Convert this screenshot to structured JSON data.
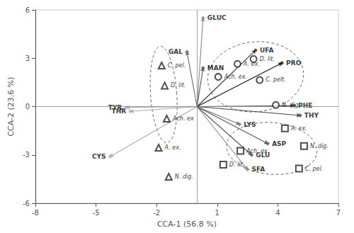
{
  "chart_data": {
    "type": "scatter",
    "xlabel": "CCA-1 (56.8 %)",
    "ylabel": "CCA-2 (23.6 %)",
    "xlim": [
      -8,
      7
    ],
    "ylim": [
      -6,
      6
    ],
    "xticks": [
      -8,
      -5,
      -2,
      1,
      4,
      7
    ],
    "yticks": [
      -6,
      -3,
      0,
      3,
      6
    ],
    "grid": false,
    "arrows": {
      "marker": "diamond",
      "items": [
        {
          "label": "GLUC",
          "x": 0.3,
          "y": 5.5,
          "color": "#888888"
        },
        {
          "label": "GAL",
          "x": -0.5,
          "y": 3.4,
          "color": "#666666"
        },
        {
          "label": "MAN",
          "x": 0.3,
          "y": 2.4,
          "color": "#555555"
        },
        {
          "label": "UFA",
          "x": 2.9,
          "y": 3.5,
          "color": "#333333"
        },
        {
          "label": "PRO",
          "x": 4.2,
          "y": 2.7,
          "color": "#111111"
        },
        {
          "label": "PHE",
          "x": 4.8,
          "y": 0.05,
          "color": "#444444"
        },
        {
          "label": "THY",
          "x": 5.1,
          "y": -0.55,
          "color": "#444444"
        },
        {
          "label": "LYS",
          "x": 2.1,
          "y": -1.1,
          "color": "#777777"
        },
        {
          "label": "ASP",
          "x": 3.5,
          "y": -2.3,
          "color": "#555555"
        },
        {
          "label": "GLU",
          "x": 2.7,
          "y": -3.0,
          "color": "#555555"
        },
        {
          "label": "SFA",
          "x": 2.5,
          "y": -3.9,
          "color": "#888888"
        },
        {
          "label": "TYR",
          "x": -3.5,
          "y": -0.05,
          "color": "#aaaaaa"
        },
        {
          "label": "THR",
          "x": -3.3,
          "y": -0.3,
          "color": "#aaaaaa"
        },
        {
          "label": "CYS",
          "x": -4.3,
          "y": -3.1,
          "color": "#aaaaaa"
        }
      ]
    },
    "species": [
      {
        "marker": "circle",
        "points": [
          {
            "label": "A. ex.",
            "x": 2.0,
            "y": 2.65
          },
          {
            "label": "D. lit.",
            "x": 2.8,
            "y": 2.95
          },
          {
            "label": "Ach. ex.",
            "x": 1.05,
            "y": 1.85
          },
          {
            "label": "C. pelt.",
            "x": 3.1,
            "y": 1.65
          },
          {
            "label": "N. dig.",
            "x": 3.9,
            "y": 0.1
          }
        ]
      },
      {
        "marker": "triangle",
        "points": [
          {
            "label": "C. pel.",
            "x": -1.75,
            "y": 2.55
          },
          {
            "label": "D. lit.",
            "x": -1.6,
            "y": 1.3
          },
          {
            "label": "Ach. ex",
            "x": -1.5,
            "y": -0.75
          },
          {
            "label": "A. ex.",
            "x": -1.9,
            "y": -2.55
          },
          {
            "label": "N. dig.",
            "x": -1.4,
            "y": -4.35
          }
        ]
      },
      {
        "marker": "square",
        "points": [
          {
            "label": "A. ex.",
            "x": 4.35,
            "y": -1.35
          },
          {
            "label": "Ach. ex.",
            "x": 2.15,
            "y": -2.75
          },
          {
            "label": "D. lit.",
            "x": 1.3,
            "y": -3.6
          },
          {
            "label": "N. dig.",
            "x": 5.3,
            "y": -2.45
          },
          {
            "label": "C. pel.",
            "x": 5.05,
            "y": -3.85
          }
        ]
      }
    ],
    "ellipses": {
      "line_style": "dashed",
      "items": [
        {
          "cx": -1.65,
          "cy": 0.75,
          "width": 1.3,
          "height": 6.0,
          "angle": 3
        },
        {
          "cx": 2.9,
          "cy": 1.85,
          "width": 4.8,
          "height": 4.3,
          "angle": 20
        },
        {
          "cx": 3.7,
          "cy": -2.6,
          "width": 4.5,
          "height": 3.2,
          "angle": -8
        }
      ]
    }
  }
}
